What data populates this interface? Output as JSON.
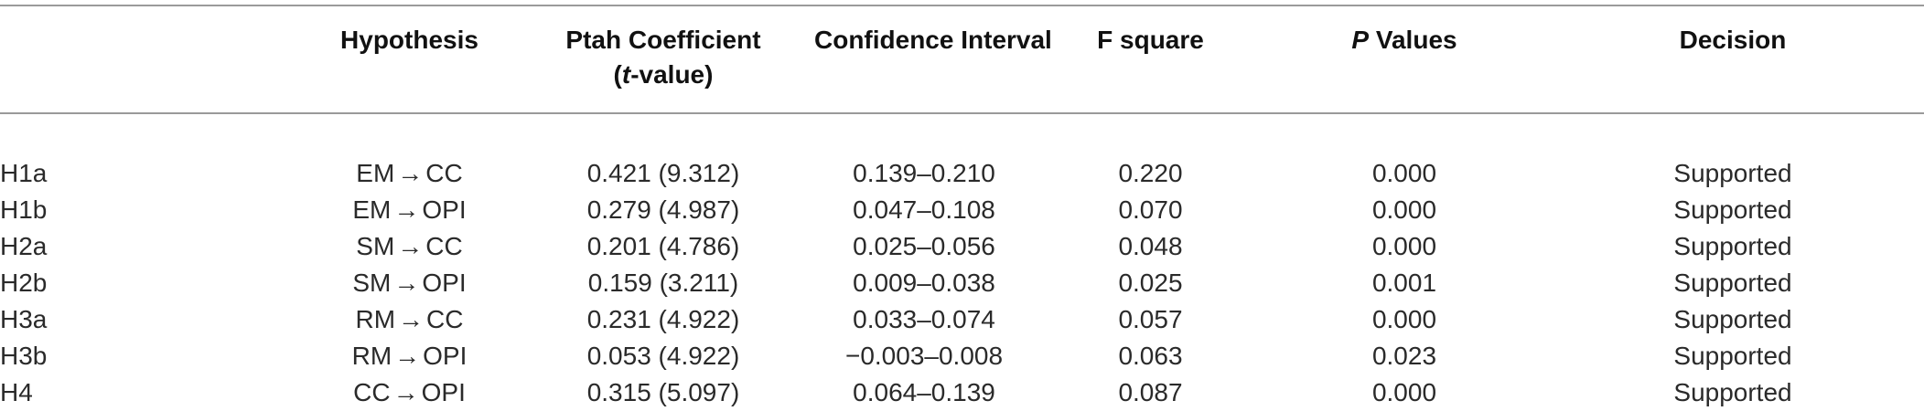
{
  "table": {
    "headers": {
      "id": "",
      "hypothesis": "Hypothesis",
      "path_line1": "Ptah Coefficient",
      "path_line2_pre": "(",
      "path_line2_italic": "t",
      "path_line2_post": "-value)",
      "ci": "Confidence Interval",
      "f_square": "F square",
      "p_italic": "P",
      "p_rest": " Values",
      "decision": "Decision"
    },
    "rows": [
      {
        "id": "H1a",
        "from": "EM",
        "to": "CC",
        "path": "0.421 (9.312)",
        "ci": "0.139–0.210",
        "f2": "0.220",
        "p": "0.000",
        "decision": "Supported"
      },
      {
        "id": "H1b",
        "from": "EM",
        "to": "OPI",
        "path": "0.279 (4.987)",
        "ci": "0.047–0.108",
        "f2": "0.070",
        "p": "0.000",
        "decision": "Supported"
      },
      {
        "id": "H2a",
        "from": "SM",
        "to": "CC",
        "path": "0.201 (4.786)",
        "ci": "0.025–0.056",
        "f2": "0.048",
        "p": "0.000",
        "decision": "Supported"
      },
      {
        "id": "H2b",
        "from": "SM",
        "to": "OPI",
        "path": "0.159 (3.211)",
        "ci": "0.009–0.038",
        "f2": "0.025",
        "p": "0.001",
        "decision": "Supported"
      },
      {
        "id": "H3a",
        "from": "RM",
        "to": "CC",
        "path": "0.231 (4.922)",
        "ci": "0.033–0.074",
        "f2": "0.057",
        "p": "0.000",
        "decision": "Supported"
      },
      {
        "id": "H3b",
        "from": "RM",
        "to": "OPI",
        "path": "0.053 (4.922)",
        "ci": "−0.003–0.008",
        "f2": "0.063",
        "p": "0.023",
        "decision": "Supported"
      },
      {
        "id": "H4",
        "from": "CC",
        "to": "OPI",
        "path": "0.315 (5.097)",
        "ci": "0.064–0.139",
        "f2": "0.087",
        "p": "0.000",
        "decision": "Supported"
      }
    ],
    "arrow": "→"
  }
}
